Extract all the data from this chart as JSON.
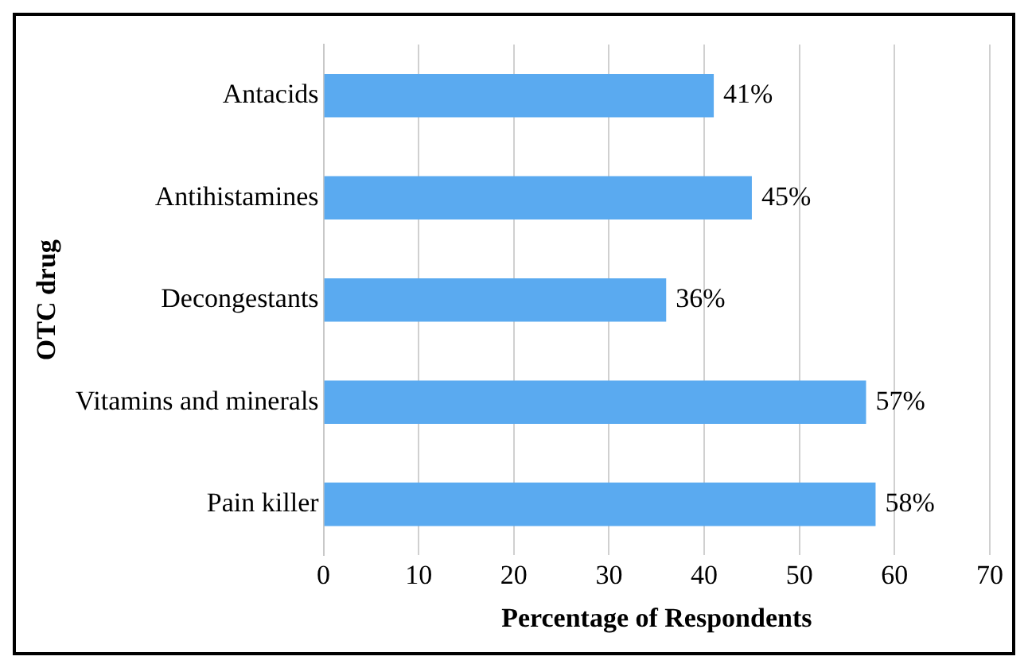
{
  "chart_data": {
    "type": "bar",
    "orientation": "horizontal",
    "categories": [
      "Antacids",
      "Antihistamines",
      "Decongestants",
      "Vitamins and minerals",
      "Pain killer"
    ],
    "values": [
      41,
      45,
      36,
      57,
      58
    ],
    "value_labels": [
      "41%",
      "45%",
      "36%",
      "57%",
      "58%"
    ],
    "color": "#5aaaf0",
    "xlabel": "Percentage of Respondents",
    "ylabel": "OTC drug",
    "xlim": [
      0,
      70
    ],
    "xticks": [
      0,
      10,
      20,
      30,
      40,
      50,
      60,
      70
    ],
    "grid": "x",
    "legend": false
  }
}
